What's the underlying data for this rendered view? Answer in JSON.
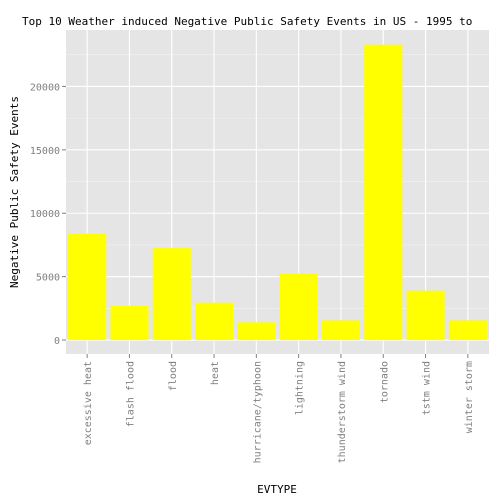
{
  "chart_data": {
    "type": "bar",
    "title": "Top 10 Weather induced Negative Public Safety Events in US - 1995 to",
    "xlabel": "EVTYPE",
    "ylabel": "Negative Public Safety Events",
    "categories": [
      "excessive heat",
      "flash flood",
      "flood",
      "heat",
      "hurricane/typhoon",
      "lightning",
      "thunderstorm wind",
      "tornado",
      "tstm wind",
      "winter storm"
    ],
    "values": [
      8400,
      2700,
      7250,
      2950,
      1400,
      5250,
      1550,
      23300,
      3900,
      1550
    ],
    "ylim": [
      -1100,
      24450
    ],
    "yticks": [
      0,
      5000,
      10000,
      15000,
      20000
    ],
    "ytick_labels": [
      "0",
      "5000",
      "10000",
      "15000",
      "20000"
    ],
    "grid": true,
    "bar_color": "#FFFF00",
    "panel_color": "#E5E5E5",
    "grid_major_color": "#FFFFFF",
    "grid_minor_color": "#F2F2F2",
    "tick_label_color": "#7F7F7F"
  }
}
